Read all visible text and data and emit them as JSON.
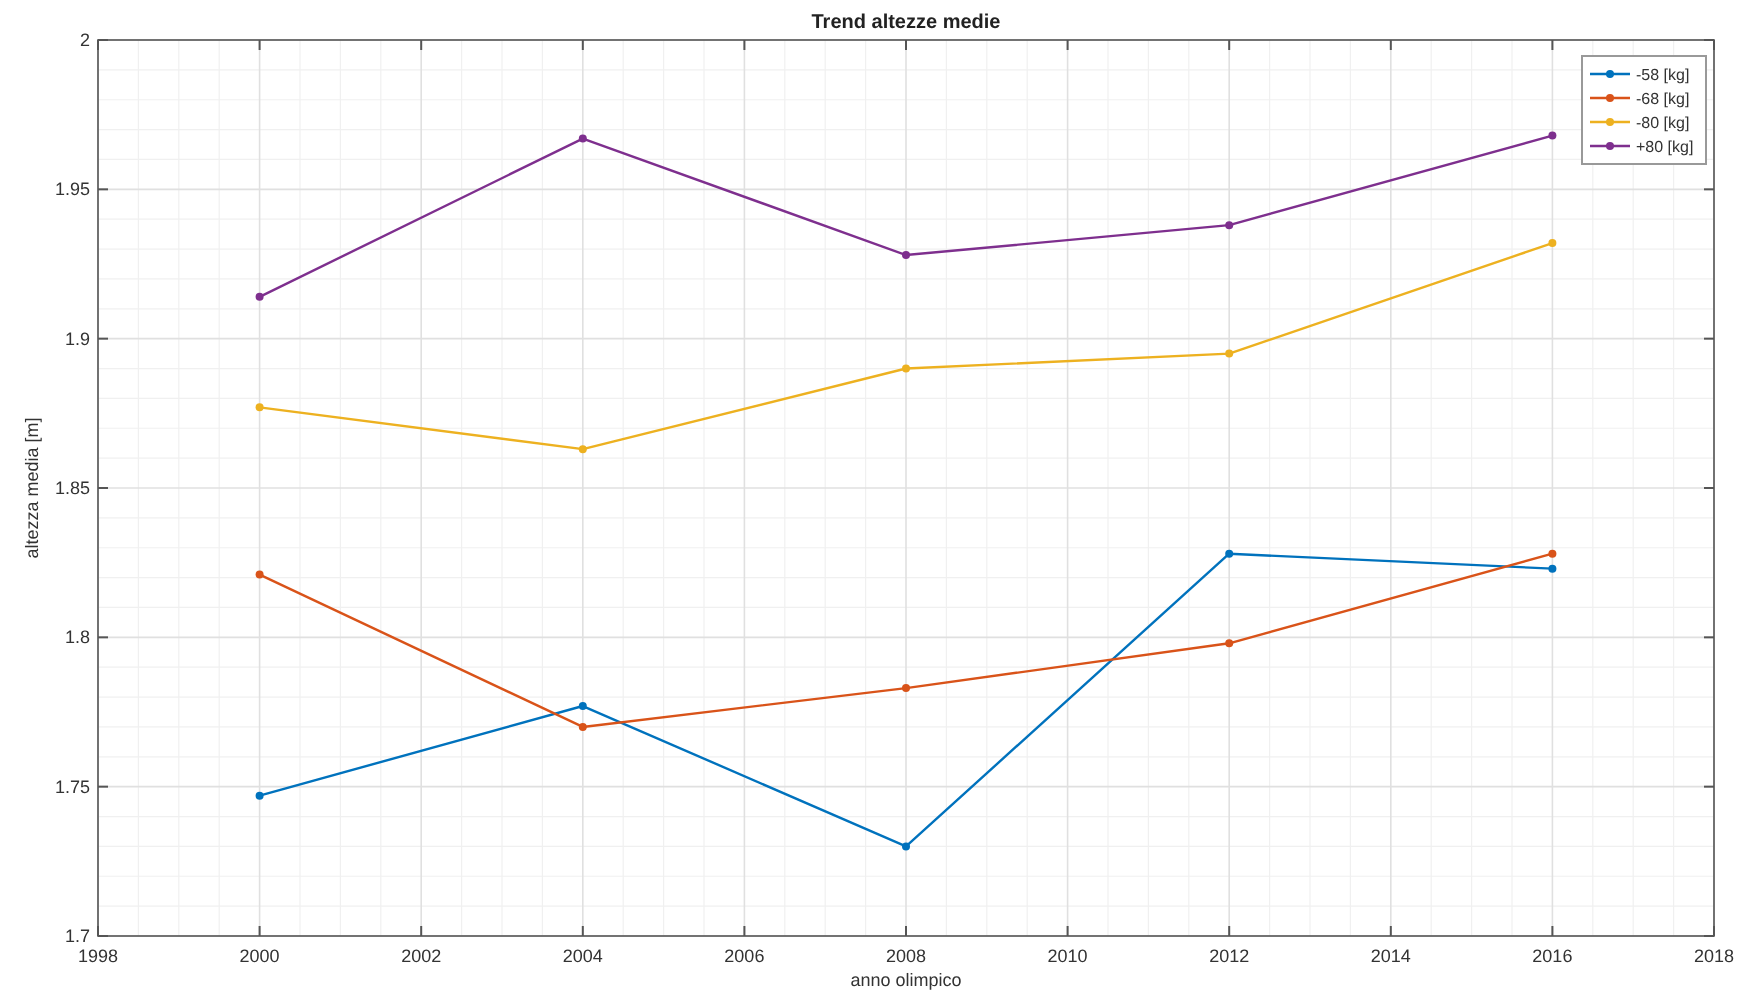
{
  "chart_data": {
    "type": "line",
    "title": "Trend altezze medie",
    "xlabel": "anno olimpico",
    "ylabel": "altezza media [m]",
    "x": [
      2000,
      2004,
      2008,
      2012,
      2016
    ],
    "series": [
      {
        "name": "-58 [kg]",
        "color": "#0072bd",
        "values": [
          1.747,
          1.777,
          1.73,
          1.828,
          1.823
        ]
      },
      {
        "name": "-68 [kg]",
        "color": "#d95319",
        "values": [
          1.821,
          1.77,
          1.783,
          1.798,
          1.828
        ]
      },
      {
        "name": "-80 [kg]",
        "color": "#edb120",
        "values": [
          1.877,
          1.863,
          1.89,
          1.895,
          1.932
        ]
      },
      {
        "name": "+80 [kg]",
        "color": "#7e2f8e",
        "values": [
          1.914,
          1.967,
          1.928,
          1.938,
          1.968
        ]
      }
    ],
    "xlim": [
      1998,
      2018
    ],
    "xticks": [
      1998,
      2000,
      2002,
      2004,
      2006,
      2008,
      2010,
      2012,
      2014,
      2016,
      2018
    ],
    "ylim": [
      1.7,
      2
    ],
    "yticks": [
      1.7,
      1.75,
      1.8,
      1.85,
      1.9,
      1.95,
      2
    ],
    "grid": true,
    "legend": "top right",
    "marker": "circle",
    "line_style": "solid"
  }
}
